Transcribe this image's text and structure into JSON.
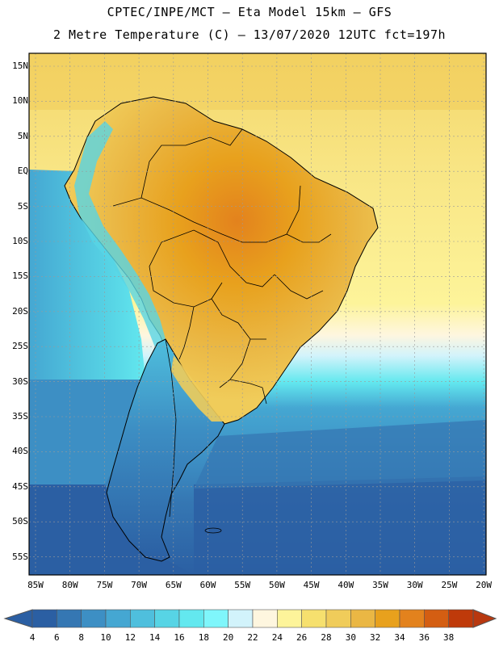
{
  "header": {
    "title_line1": "CPTEC/INPE/MCT –  Eta Model 15km – GFS",
    "title_line2": "2 Metre Temperature (C) – 13/07/2020 12UTC fct=197h"
  },
  "axes": {
    "lat_labels": [
      "15N",
      "10N",
      "5N",
      "EQ",
      "5S",
      "10S",
      "15S",
      "20S",
      "25S",
      "30S",
      "35S",
      "40S",
      "45S",
      "50S",
      "55S"
    ],
    "lon_labels": [
      "85W",
      "80W",
      "75W",
      "70W",
      "65W",
      "60W",
      "55W",
      "50W",
      "45W",
      "40W",
      "35W",
      "30W",
      "25W",
      "20W"
    ]
  },
  "colorbar": {
    "labels": [
      "4",
      "6",
      "8",
      "10",
      "12",
      "14",
      "16",
      "18",
      "20",
      "22",
      "24",
      "26",
      "28",
      "30",
      "32",
      "34",
      "36",
      "38"
    ],
    "colors": [
      "#2b5fa3",
      "#3577b3",
      "#3d8fc4",
      "#45a7d2",
      "#4fbfdd",
      "#57d4e5",
      "#63e8ef",
      "#7ff6fb",
      "#d2f3fb",
      "#fef6df",
      "#fdf49a",
      "#f6e06e",
      "#f0cc5a",
      "#eab744",
      "#e8a11d",
      "#e3821d",
      "#d45e12",
      "#bf3a0a"
    ],
    "low_color": "#2b5fa3",
    "high_color": "#b8380f"
  },
  "map_colors": {
    "ocean_cold": "#2b5fa3",
    "ocean_cool": "#3d8fc4",
    "ocean_mid": "#4fbfdd",
    "ocean_light": "#63e8ef",
    "ocean_warm": "#fdf49a",
    "ocean_warmer": "#f6e06e",
    "land_hot": "#eab744",
    "land_hotter": "#e3821d",
    "border": "#000000"
  }
}
